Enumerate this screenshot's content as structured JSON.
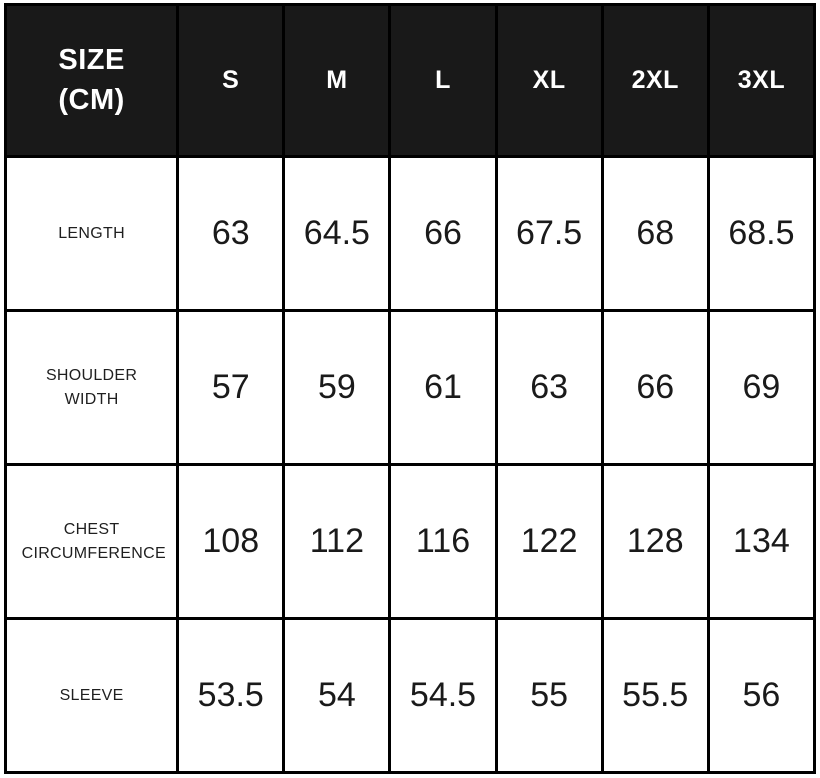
{
  "table": {
    "title": "size-chart",
    "unit_header": {
      "line1": "SIZE",
      "line2": "(CM)"
    },
    "size_columns": [
      "S",
      "M",
      "L",
      "XL",
      "2XL",
      "3XL"
    ],
    "rows": [
      {
        "label": "LENGTH",
        "values": [
          "63",
          "64.5",
          "66",
          "67.5",
          "68",
          "68.5"
        ]
      },
      {
        "label": "SHOULDER WIDTH",
        "values": [
          "57",
          "59",
          "61",
          "63",
          "66",
          "69"
        ]
      },
      {
        "label": "CHEST CIRCUMFERENCE",
        "values": [
          "108",
          "112",
          "116",
          "122",
          "128",
          "134"
        ]
      },
      {
        "label": "SLEEVE",
        "values": [
          "53.5",
          "54",
          "54.5",
          "55",
          "55.5",
          "56"
        ]
      }
    ],
    "colors": {
      "header_bg": "#191919",
      "header_text": "#ffffff",
      "cell_bg": "#ffffff",
      "cell_text": "#1a1a1a",
      "border": "#000000"
    }
  }
}
